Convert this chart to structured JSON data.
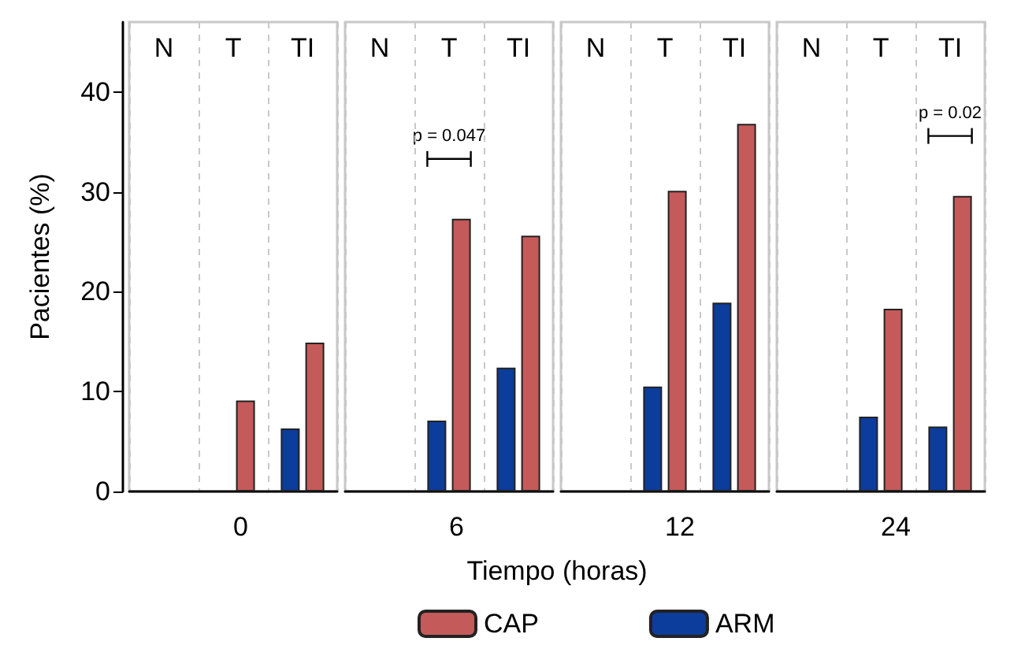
{
  "chart_data": [
    {
      "type": "bar",
      "title": "0",
      "ylabel": "Pacientes (%)",
      "xlabel": "Tiempo (horas)",
      "categories": [
        "N",
        "T",
        "TI"
      ],
      "ylim": [
        0,
        47
      ],
      "yticks": [
        0,
        10,
        20,
        30,
        40
      ],
      "grid": "x",
      "legend": "bottom",
      "series": [
        {
          "name": "ARM",
          "color": "#0c3c9c",
          "values": [
            null,
            null,
            6.3
          ]
        },
        {
          "name": "CAP",
          "color": "#c55a5a",
          "values": [
            null,
            9.1,
            14.9
          ]
        }
      ]
    },
    {
      "type": "bar",
      "title": "6",
      "categories": [
        "N",
        "T",
        "TI"
      ],
      "ylim": [
        0,
        47
      ],
      "grid": "x",
      "tick_labels": "x",
      "annotations": [
        "p = 0.047"
      ],
      "series": [
        {
          "color": "#0c3c9c",
          "values": [
            null,
            7.1,
            12.4
          ]
        },
        {
          "color": "#c55a5a",
          "values": [
            null,
            27.3,
            25.6
          ]
        }
      ]
    },
    {
      "type": "bar",
      "title": "12",
      "categories": [
        "N",
        "T",
        "TI"
      ],
      "ylim": [
        0,
        47
      ],
      "grid": "x",
      "tick_labels": "x",
      "series": [
        {
          "color": "#0c3c9c",
          "values": [
            null,
            10.5,
            18.9
          ]
        },
        {
          "color": "#c55a5a",
          "values": [
            null,
            30.1,
            36.8
          ]
        }
      ]
    },
    {
      "type": "bar",
      "title": "24",
      "categories": [
        "N",
        "T",
        "TI"
      ],
      "ylim": [
        0,
        47
      ],
      "grid": "x",
      "tick_labels": "x",
      "annotations": [
        "p = 0.02"
      ],
      "series": [
        {
          "color": "#0c3c9c",
          "values": [
            null,
            7.5,
            6.5
          ]
        },
        {
          "color": "#c55a5a",
          "values": [
            null,
            18.3,
            29.6
          ]
        }
      ]
    }
  ]
}
